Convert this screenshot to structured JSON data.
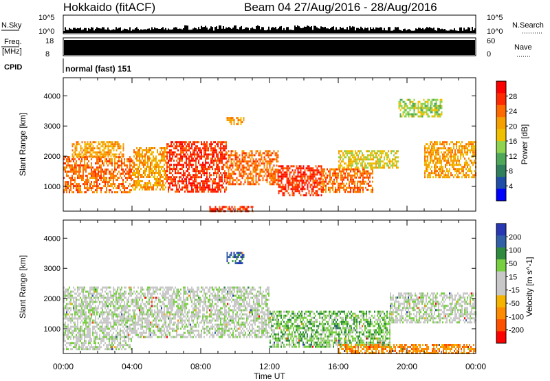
{
  "header": {
    "station": "Hokkaido (fitACF)",
    "beam_info": "Beam 04 27/Aug/2016 - 28/Aug/2016"
  },
  "status_panels": {
    "nsky_label": "N.Sky",
    "nsky_ticks": [
      "10^5",
      "10^0"
    ],
    "nsearch_label": "N.Search",
    "nsearch_ticks": [
      "10^5",
      "10^0"
    ],
    "freq_label": "Freq.",
    "freq_unit": "[MHz]",
    "freq_ticks": [
      "18",
      "8"
    ],
    "nave_label": "Nave",
    "nave_ticks": [
      "60",
      "0"
    ],
    "cpid_label": "CPID",
    "cpid_text": "normal (fast) 151"
  },
  "colors": {
    "power_scale": [
      "#0000ff",
      "#1f4ea8",
      "#2f7f5c",
      "#4fa85a",
      "#8fd34f",
      "#f0c000",
      "#f5a000",
      "#ff6a00",
      "#ff2a00",
      "#ff0000"
    ],
    "velocity_scale": [
      "#2838b4",
      "#3260a8",
      "#2e8a3e",
      "#78d040",
      "#c8c8c8",
      "#c8c8c8",
      "#f5b400",
      "#ff8c00",
      "#ff5000",
      "#ff0000"
    ]
  },
  "chart_data": [
    {
      "type": "heatmap",
      "title": "",
      "xlabel": "Time UT",
      "ylabel": "Slant Range [km]",
      "x_ticks": [
        "00:00",
        "04:00",
        "08:00",
        "12:00",
        "16:00",
        "20:00",
        "00:00"
      ],
      "y_ticks": [
        "1000",
        "2000",
        "3000",
        "4000"
      ],
      "ylim": [
        180,
        4600
      ],
      "colorbar_label": "Power [dB]",
      "colorbar_ticks": [
        "4",
        "8",
        "12",
        "16",
        "20",
        "24",
        "28"
      ],
      "regions": [
        {
          "t0": 0.0,
          "t1": 4.0,
          "r0": 800,
          "r1": 2000,
          "level": 7
        },
        {
          "t0": 0.5,
          "t1": 3.5,
          "r0": 2000,
          "r1": 2500,
          "level": 6
        },
        {
          "t0": 4.0,
          "t1": 6.0,
          "r0": 900,
          "r1": 2300,
          "level": 6
        },
        {
          "t0": 6.0,
          "t1": 9.5,
          "r0": 800,
          "r1": 2500,
          "level": 8
        },
        {
          "t0": 9.5,
          "t1": 12.5,
          "r0": 1100,
          "r1": 2200,
          "level": 7
        },
        {
          "t0": 12.5,
          "t1": 15.0,
          "r0": 700,
          "r1": 1700,
          "level": 8
        },
        {
          "t0": 15.0,
          "t1": 18.0,
          "r0": 800,
          "r1": 1600,
          "level": 7
        },
        {
          "t0": 16.0,
          "t1": 19.5,
          "r0": 1600,
          "r1": 2200,
          "level": 5
        },
        {
          "t0": 21.0,
          "t1": 24.0,
          "r0": 1300,
          "r1": 2500,
          "level": 6
        },
        {
          "t0": 8.5,
          "t1": 11.0,
          "r0": 200,
          "r1": 350,
          "level": 8
        },
        {
          "t0": 9.5,
          "t1": 10.5,
          "r0": 3050,
          "r1": 3300,
          "level": 6
        },
        {
          "t0": 19.5,
          "t1": 22.0,
          "r0": 3300,
          "r1": 3900,
          "level": 4
        }
      ]
    },
    {
      "type": "heatmap",
      "title": "",
      "xlabel": "Time UT",
      "ylabel": "Slant Range [km]",
      "x_ticks": [
        "00:00",
        "04:00",
        "08:00",
        "12:00",
        "16:00",
        "20:00",
        "00:00"
      ],
      "y_ticks": [
        "1000",
        "2000",
        "3000",
        "4000"
      ],
      "ylim": [
        180,
        4600
      ],
      "colorbar_label": "Velocity [m s^-1]",
      "colorbar_ticks": [
        "200",
        "100",
        "50",
        "15",
        "-15",
        "-50",
        "-100",
        "-200"
      ],
      "regions": [
        {
          "t0": 0.0,
          "t1": 12.0,
          "r0": 700,
          "r1": 2400,
          "level": 4
        },
        {
          "t0": 0.0,
          "t1": 4.0,
          "r0": 300,
          "r1": 700,
          "level": 4
        },
        {
          "t0": 12.0,
          "t1": 19.0,
          "r0": 400,
          "r1": 1600,
          "level": 3
        },
        {
          "t0": 19.0,
          "t1": 24.0,
          "r0": 1200,
          "r1": 2200,
          "level": 4
        },
        {
          "t0": 9.5,
          "t1": 10.5,
          "r0": 3150,
          "r1": 3550,
          "level": 1
        },
        {
          "t0": 16.0,
          "t1": 24.0,
          "r0": 200,
          "r1": 500,
          "level": 7
        }
      ]
    }
  ]
}
